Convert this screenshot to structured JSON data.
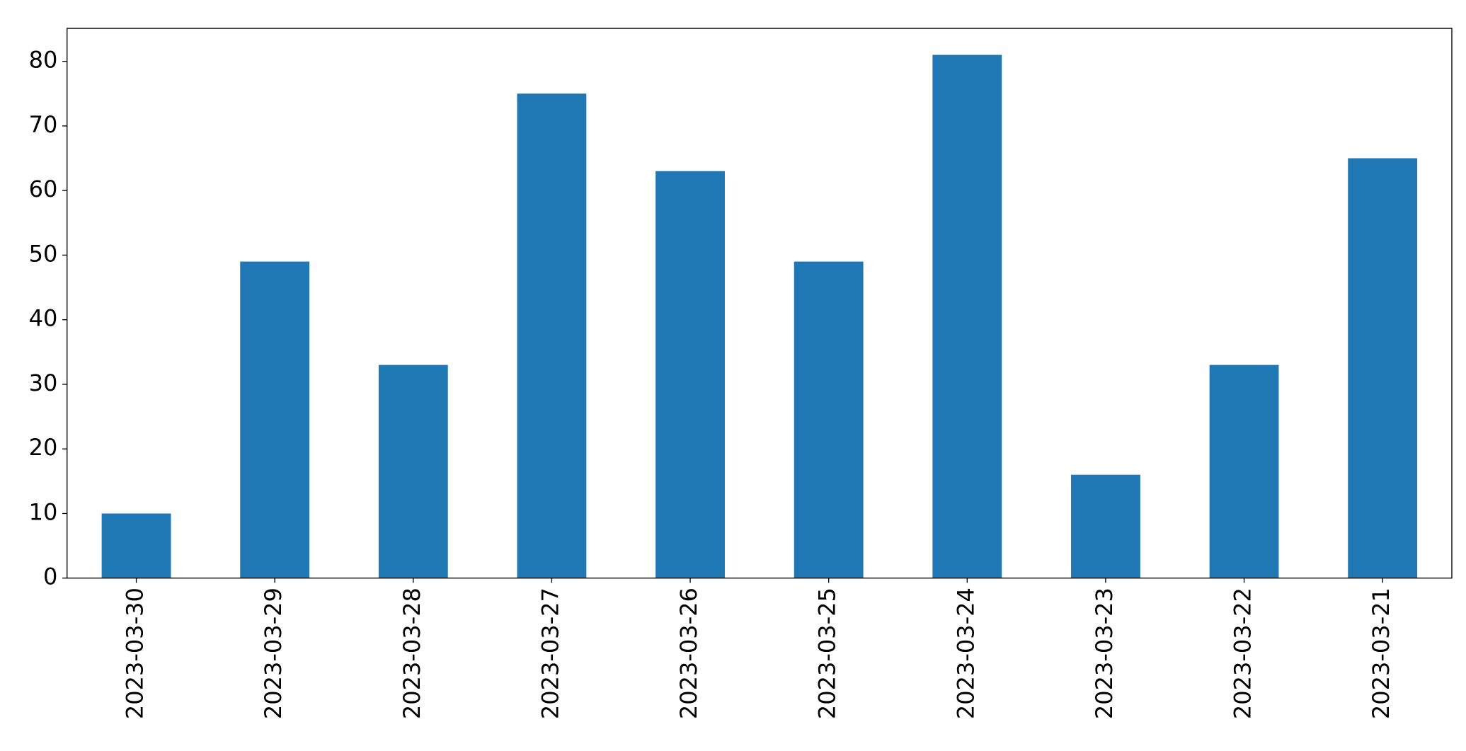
{
  "chart_data": {
    "type": "bar",
    "categories": [
      "2023-03-30",
      "2023-03-29",
      "2023-03-28",
      "2023-03-27",
      "2023-03-26",
      "2023-03-25",
      "2023-03-24",
      "2023-03-23",
      "2023-03-22",
      "2023-03-21"
    ],
    "values": [
      10,
      49,
      33,
      75,
      63,
      49,
      81,
      16,
      33,
      65
    ],
    "color": "#1f77b4",
    "ylim": [
      0,
      85.1
    ],
    "yticks": [
      0,
      10,
      20,
      30,
      40,
      50,
      60,
      70,
      80
    ],
    "grid": false
  }
}
